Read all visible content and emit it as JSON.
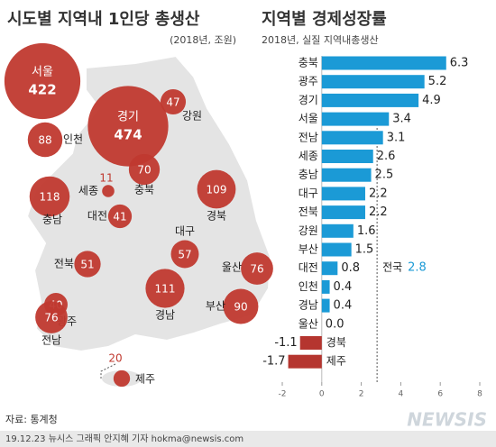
{
  "chart_data": [
    {
      "type": "bubble-map",
      "title": "시도별 지역내 1인당 총생산",
      "subtitle": "(2018년, 조원)",
      "categories": [
        "서울",
        "경기",
        "인천",
        "강원",
        "충북",
        "세종",
        "충남",
        "대전",
        "경북",
        "대구",
        "전북",
        "울산",
        "경남",
        "광주",
        "부산",
        "전남",
        "제주"
      ],
      "values": [
        422,
        474,
        88,
        47,
        70,
        11,
        118,
        41,
        109,
        57,
        51,
        76,
        111,
        40,
        90,
        76,
        20
      ],
      "color": "#c0392f"
    },
    {
      "type": "hbar",
      "title": "지역별 경제성장률",
      "subtitle": "2018년, 실질 지역내총생산",
      "categories": [
        "충북",
        "광주",
        "경기",
        "서울",
        "전남",
        "세종",
        "충남",
        "대구",
        "전북",
        "강원",
        "부산",
        "대전",
        "인천",
        "경남",
        "울산",
        "경북",
        "제주"
      ],
      "values": [
        6.3,
        5.2,
        4.9,
        3.4,
        3.1,
        2.6,
        2.5,
        2.2,
        2.2,
        1.6,
        1.5,
        0.8,
        0.4,
        0.4,
        0.0,
        -1.1,
        -1.7
      ],
      "value_labels": [
        "6.3",
        "5.2",
        "4.9",
        "3.4",
        "3.1",
        "2.6",
        "2.5",
        "2.2",
        "2.2",
        "1.6",
        "1.5",
        "0.8",
        "0.4",
        "0.4",
        "0.0",
        "-1.1",
        "-1.7"
      ],
      "color": "#1b9ad6",
      "negative_color": "#b5352f",
      "xlim": [
        -2,
        8
      ],
      "xticks": [
        -2,
        0,
        2,
        4,
        6,
        8
      ],
      "reference": {
        "label": "전국",
        "value": 2.8
      }
    }
  ],
  "footer": {
    "source": "자료: 통계청",
    "credit": "19.12.23 뉴시스 그래픽 안지혜 기자 hokma@newsis.com",
    "logo": "NEWSIS"
  }
}
